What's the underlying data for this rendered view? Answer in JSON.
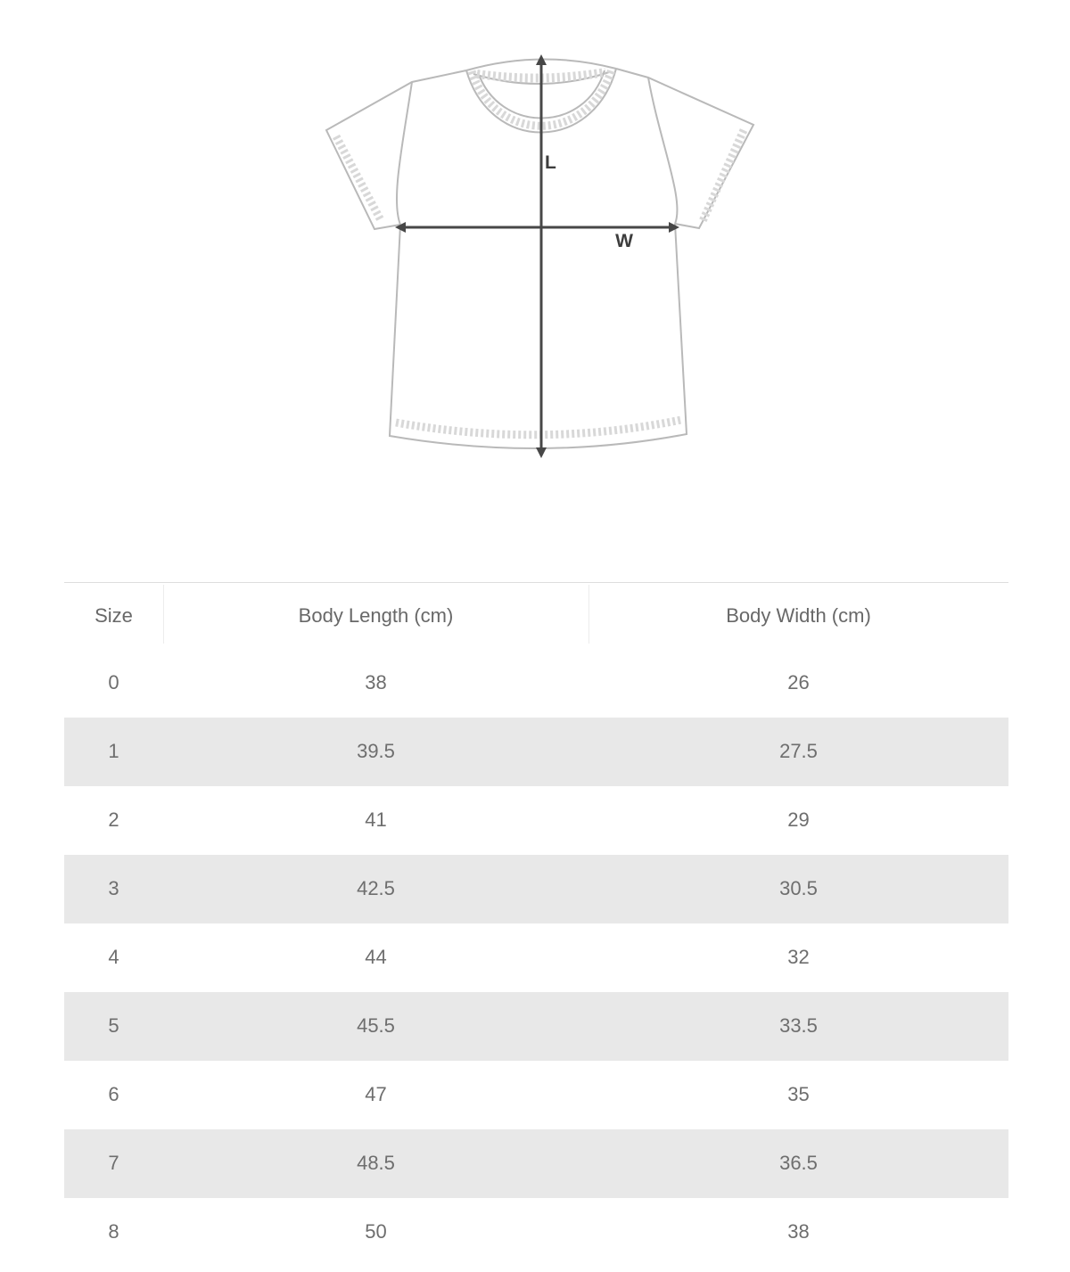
{
  "diagram": {
    "length_label": "L",
    "width_label": "W"
  },
  "table": {
    "columns": [
      "Size",
      "Body Length (cm)",
      "Body Width (cm)"
    ],
    "rows": [
      [
        "0",
        "38",
        "26"
      ],
      [
        "1",
        "39.5",
        "27.5"
      ],
      [
        "2",
        "41",
        "29"
      ],
      [
        "3",
        "42.5",
        "30.5"
      ],
      [
        "4",
        "44",
        "32"
      ],
      [
        "5",
        "45.5",
        "33.5"
      ],
      [
        "6",
        "47",
        "35"
      ],
      [
        "7",
        "48.5",
        "36.5"
      ],
      [
        "8",
        "50",
        "38"
      ]
    ]
  },
  "colors": {
    "row_alternate": "#e8e8e8",
    "table_text": "#6e6e6e",
    "header_border": "#dedede",
    "divider": "#ececec",
    "garment_outline": "#b9b9b9",
    "stitch": "#d8d8d8",
    "arrow": "#474747"
  }
}
